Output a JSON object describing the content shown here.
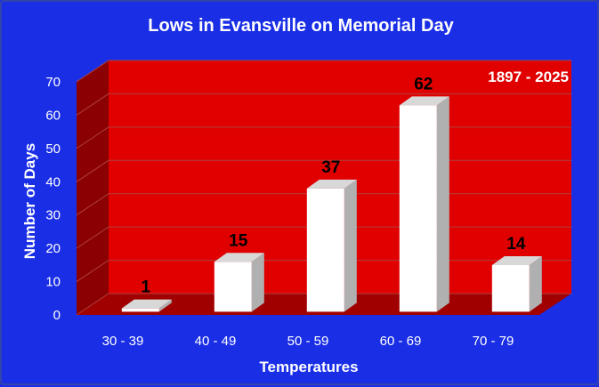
{
  "chart_data": {
    "type": "bar",
    "title": "Lows in Evansville on Memorial Day",
    "annotation": "1897 - 2025",
    "xlabel": "Temperatures",
    "ylabel": "Number of Days",
    "categories": [
      "30 - 39",
      "40 - 49",
      "50 - 59",
      "60 - 69",
      "70 - 79"
    ],
    "values": [
      1,
      15,
      37,
      62,
      14
    ],
    "ylim": [
      0,
      70
    ],
    "yticks": [
      0,
      10,
      20,
      30,
      40,
      50,
      60,
      70
    ],
    "grid": true,
    "colors": {
      "background": "#1a2ee6",
      "plot_wall": "#e00000",
      "plot_side_wall": "#8b0000",
      "floor": "#a00000",
      "bar_front": "#ffffff",
      "bar_side": "#b0b0b0",
      "bar_top": "#d8d8d8"
    }
  }
}
